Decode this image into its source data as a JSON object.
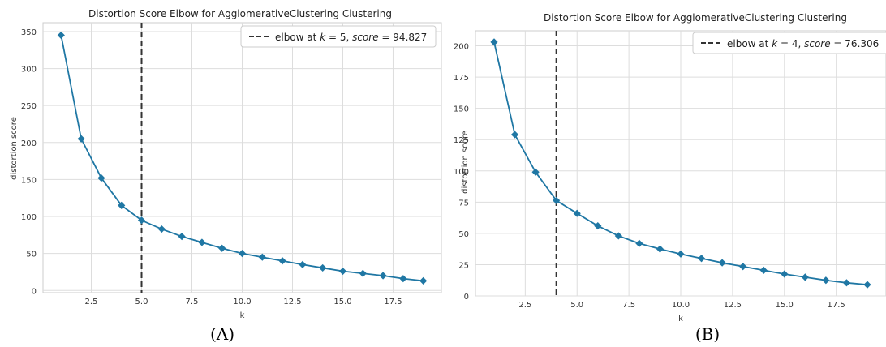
{
  "charts": [
    {
      "caption": "(A)",
      "chart_data": {
        "type": "line",
        "title": "Distortion Score Elbow for AgglomerativeClustering Clustering",
        "xlabel": "k",
        "ylabel": "distortion score",
        "x": [
          1,
          2,
          3,
          4,
          5,
          6,
          7,
          8,
          9,
          10,
          11,
          12,
          13,
          14,
          15,
          16,
          17,
          18,
          19
        ],
        "series": [
          {
            "values": [
              345,
              205,
              152,
              115,
              94.8,
              83,
              73,
              65,
              57,
              50,
              45,
              40,
              35,
              30.5,
              26,
              23,
              20,
              16,
              13
            ]
          }
        ],
        "xlim": [
          0.1,
          19.9
        ],
        "ylim": [
          -3,
          362
        ],
        "xticks": [
          "2.5",
          "5.0",
          "7.5",
          "10.0",
          "12.5",
          "15.0",
          "17.5"
        ],
        "xtick_values": [
          2.5,
          5,
          7.5,
          10,
          12.5,
          15,
          17.5
        ],
        "yticks": [
          "0",
          "50",
          "100",
          "150",
          "200",
          "250",
          "300",
          "350"
        ],
        "ytick_values": [
          0,
          50,
          100,
          150,
          200,
          250,
          300,
          350
        ],
        "elbow_k": 5,
        "legend": {
          "prefix": "elbow at ",
          "k": "k",
          "eq_k": " = 5, ",
          "score": "score",
          "eq_score": " = 94.827"
        },
        "legend_position": "top-right",
        "grid": true,
        "colors": {
          "line": "#1f77a4",
          "elbow": "#333333",
          "grid": "#dddddd"
        }
      }
    },
    {
      "caption": "(B)",
      "chart_data": {
        "type": "line",
        "title": "Distortion Score Elbow for AgglomerativeClustering Clustering",
        "xlabel": "k",
        "ylabel": "distortion score",
        "x": [
          1,
          2,
          3,
          4,
          5,
          6,
          7,
          8,
          9,
          10,
          11,
          12,
          13,
          14,
          15,
          16,
          17,
          18,
          19
        ],
        "series": [
          {
            "values": [
              203,
              129,
              99,
              76.3,
              66,
              56,
              48,
              42,
              37.5,
              33.5,
              30,
              26.5,
              23.5,
              20.5,
              17.5,
              15,
              12.5,
              10.5,
              9
            ]
          }
        ],
        "xlim": [
          0.1,
          19.9
        ],
        "ylim": [
          0,
          212
        ],
        "xticks": [
          "2.5",
          "5.0",
          "7.5",
          "10.0",
          "12.5",
          "15.0",
          "17.5"
        ],
        "xtick_values": [
          2.5,
          5,
          7.5,
          10,
          12.5,
          15,
          17.5
        ],
        "yticks": [
          "0",
          "25",
          "50",
          "75",
          "100",
          "125",
          "150",
          "175",
          "200"
        ],
        "ytick_values": [
          0,
          25,
          50,
          75,
          100,
          125,
          150,
          175,
          200
        ],
        "elbow_k": 4,
        "legend": {
          "prefix": "elbow at ",
          "k": "k",
          "eq_k": " = 4, ",
          "score": "score",
          "eq_score": " = 76.306"
        },
        "legend_position": "top-right",
        "grid": true,
        "colors": {
          "line": "#1f77a4",
          "elbow": "#333333",
          "grid": "#dddddd"
        }
      }
    }
  ]
}
